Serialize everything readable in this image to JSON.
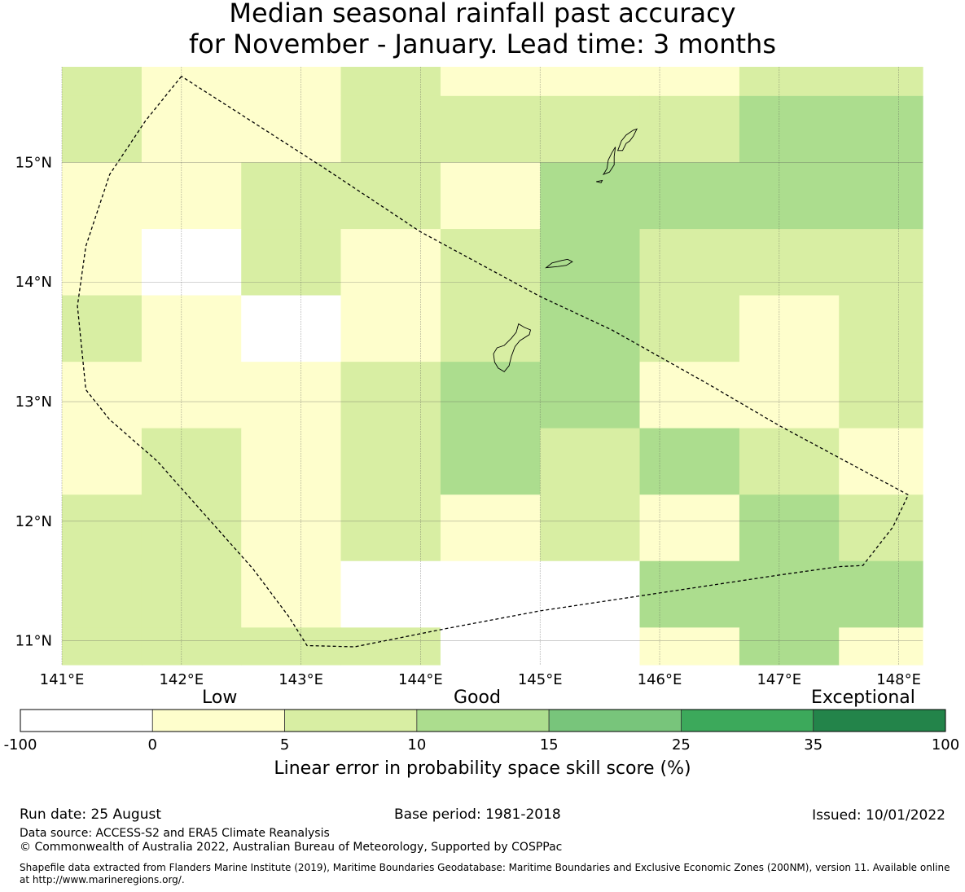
{
  "title": {
    "line1": "Median seasonal rainfall past accuracy",
    "line2": "for November - January. Lead time: 3 months"
  },
  "map": {
    "lon_range": [
      141.0,
      148.2
    ],
    "lat_range": [
      10.8,
      15.8
    ],
    "x_ticks": [
      "141°E",
      "142°E",
      "143°E",
      "144°E",
      "145°E",
      "146°E",
      "147°E",
      "148°E"
    ],
    "x_tick_values": [
      141,
      142,
      143,
      144,
      145,
      146,
      147,
      148
    ],
    "y_ticks": [
      "15°N",
      "14°N",
      "13°N",
      "12°N",
      "11°N"
    ],
    "y_tick_values": [
      15,
      14,
      13,
      12,
      11
    ],
    "cell_lons": [
      141.0,
      141.667,
      142.5,
      143.333,
      144.167,
      145.0,
      145.833,
      146.667,
      147.5,
      148.2
    ],
    "cell_lats": [
      15.8,
      15.556,
      15.0,
      14.444,
      13.889,
      13.333,
      12.778,
      12.222,
      11.667,
      11.111,
      10.8
    ],
    "category_colors": [
      "#ffffff",
      "#fefecc",
      "#d8eea3",
      "#acdd8e",
      "#78c57b",
      "#3ca95b",
      "#23844a"
    ],
    "grid_categories": [
      [
        2,
        1,
        1,
        2,
        1,
        1,
        1,
        2,
        2
      ],
      [
        2,
        1,
        1,
        2,
        2,
        2,
        2,
        3,
        3
      ],
      [
        1,
        1,
        2,
        2,
        1,
        3,
        3,
        3,
        3
      ],
      [
        1,
        0,
        2,
        1,
        2,
        3,
        2,
        2,
        2
      ],
      [
        2,
        1,
        0,
        1,
        2,
        3,
        2,
        1,
        2
      ],
      [
        1,
        1,
        1,
        2,
        3,
        3,
        1,
        1,
        2
      ],
      [
        1,
        2,
        1,
        2,
        3,
        2,
        3,
        2,
        1
      ],
      [
        2,
        2,
        1,
        2,
        1,
        2,
        1,
        3,
        2
      ],
      [
        2,
        2,
        1,
        0,
        0,
        0,
        3,
        3,
        3
      ],
      [
        2,
        2,
        2,
        2,
        0,
        0,
        1,
        3,
        1
      ]
    ],
    "eez_boundary": [
      [
        142.0,
        15.72
      ],
      [
        141.7,
        15.35
      ],
      [
        141.4,
        14.9
      ],
      [
        141.2,
        14.3
      ],
      [
        141.13,
        13.8
      ],
      [
        141.2,
        13.1
      ],
      [
        141.4,
        12.85
      ],
      [
        141.8,
        12.5
      ],
      [
        142.2,
        12.05
      ],
      [
        142.6,
        11.6
      ],
      [
        142.9,
        11.2
      ],
      [
        143.05,
        10.96
      ],
      [
        143.45,
        10.95
      ],
      [
        144.2,
        11.1
      ],
      [
        145.0,
        11.25
      ],
      [
        146.0,
        11.4
      ],
      [
        147.0,
        11.55
      ],
      [
        147.5,
        11.62
      ],
      [
        147.7,
        11.63
      ],
      [
        147.95,
        11.95
      ],
      [
        148.08,
        12.22
      ],
      [
        147.0,
        12.8
      ],
      [
        146.4,
        13.15
      ],
      [
        145.6,
        13.6
      ],
      [
        145.0,
        13.88
      ],
      [
        144.0,
        14.42
      ],
      [
        143.2,
        14.95
      ],
      [
        142.5,
        15.4
      ],
      [
        142.0,
        15.72
      ]
    ],
    "islands": [
      [
        [
          144.65,
          13.28
        ],
        [
          144.62,
          13.33
        ],
        [
          144.61,
          13.4
        ],
        [
          144.64,
          13.45
        ],
        [
          144.7,
          13.47
        ],
        [
          144.76,
          13.53
        ],
        [
          144.8,
          13.58
        ],
        [
          144.82,
          13.65
        ],
        [
          144.87,
          13.62
        ],
        [
          144.92,
          13.6
        ],
        [
          144.91,
          13.56
        ],
        [
          144.83,
          13.51
        ],
        [
          144.79,
          13.46
        ],
        [
          144.76,
          13.38
        ],
        [
          144.74,
          13.3
        ],
        [
          144.7,
          13.25
        ],
        [
          144.65,
          13.28
        ]
      ],
      [
        [
          145.05,
          14.12
        ],
        [
          145.1,
          14.16
        ],
        [
          145.18,
          14.18
        ],
        [
          145.23,
          14.19
        ],
        [
          145.27,
          14.17
        ],
        [
          145.22,
          14.14
        ],
        [
          145.15,
          14.13
        ],
        [
          145.05,
          14.12
        ]
      ],
      [
        [
          145.53,
          14.9
        ],
        [
          145.56,
          14.95
        ],
        [
          145.57,
          15.02
        ],
        [
          145.6,
          15.08
        ],
        [
          145.63,
          15.13
        ],
        [
          145.62,
          15.05
        ],
        [
          145.62,
          14.98
        ],
        [
          145.58,
          14.92
        ],
        [
          145.53,
          14.9
        ]
      ],
      [
        [
          145.65,
          15.1
        ],
        [
          145.68,
          15.18
        ],
        [
          145.72,
          15.23
        ],
        [
          145.78,
          15.27
        ],
        [
          145.81,
          15.28
        ],
        [
          145.78,
          15.22
        ],
        [
          145.75,
          15.18
        ],
        [
          145.72,
          15.16
        ],
        [
          145.69,
          15.1
        ],
        [
          145.65,
          15.1
        ]
      ],
      [
        [
          145.47,
          14.84
        ],
        [
          145.52,
          14.85
        ],
        [
          145.51,
          14.83
        ],
        [
          145.47,
          14.84
        ]
      ]
    ]
  },
  "colorbar": {
    "levels_top": [
      "Low",
      "Good",
      "Exceptional"
    ],
    "tick_labels": [
      "-100",
      "0",
      "5",
      "10",
      "15",
      "25",
      "35",
      "100"
    ],
    "label": "Linear error in probability space skill score (%)"
  },
  "footer": {
    "run_date": "Run date: 25 August",
    "base_period": "Base period: 1981-2018",
    "issued": "Issued: 10/01/2022",
    "data_source": "Data source: ACCESS-S2 and ERA5 Climate Reanalysis",
    "copyright": "© Commonwealth of Australia 2022, Australian Bureau of Meteorology, Supported by COSPPac",
    "shapefile_note": "Shapefile data extracted from Flanders Marine Institute (2019), Maritime Boundaries Geodatabase: Maritime Boundaries and Exclusive Economic Zones (200NM), version 11. Available online at http://www.marineregions.org/."
  }
}
